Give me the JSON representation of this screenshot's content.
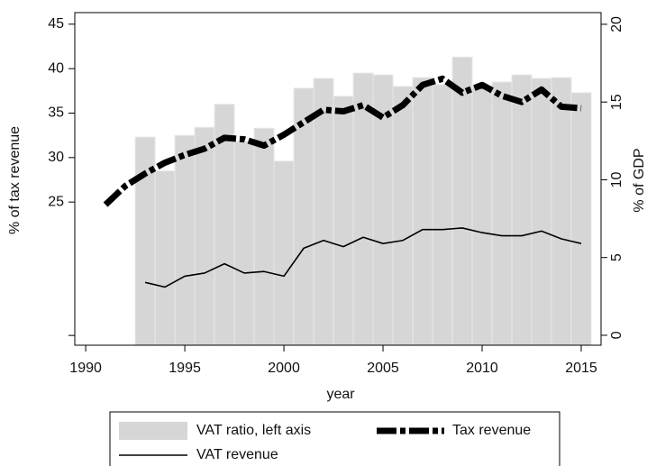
{
  "chart_data": {
    "type": "combo",
    "x_label": "year",
    "y_label": "% of tax revenue",
    "y2_label": "% of GDP",
    "x": [
      1991,
      1992,
      1993,
      1994,
      1995,
      1996,
      1997,
      1998,
      1999,
      2000,
      2001,
      2002,
      2003,
      2004,
      2005,
      2006,
      2007,
      2008,
      2009,
      2010,
      2011,
      2012,
      2013,
      2014,
      2015
    ],
    "xlim": [
      1989.45,
      2016
    ],
    "xticks": [
      1990,
      1995,
      2000,
      2005,
      2010,
      2015
    ],
    "ylim": [
      8.9,
      46.3
    ],
    "yticks": [
      {
        "value": 10,
        "label": null
      },
      25,
      30,
      35,
      40,
      45
    ],
    "y2lim": [
      -0.64,
      20.75
    ],
    "y2ticks": [
      0,
      5,
      10,
      15,
      20
    ],
    "series": [
      {
        "name": "VAT ratio, left axis",
        "type": "bar",
        "axis": "y",
        "color": "#d6d6d6",
        "values": [
          null,
          null,
          32.3,
          28.5,
          32.5,
          33.4,
          36.0,
          31.8,
          33.3,
          29.6,
          37.8,
          38.9,
          36.9,
          39.5,
          39.3,
          38.0,
          39.0,
          38.2,
          41.3,
          38.0,
          38.5,
          39.3,
          38.9,
          39.0,
          37.3
        ]
      },
      {
        "name": "Tax revenue",
        "type": "line",
        "axis": "y2",
        "color": "#000000",
        "style": "dash-dot",
        "values": [
          8.4,
          9.6,
          10.4,
          11.1,
          11.6,
          12.0,
          12.7,
          12.6,
          12.2,
          12.9,
          13.7,
          14.5,
          14.4,
          14.8,
          14.0,
          14.8,
          16.1,
          16.5,
          15.6,
          16.1,
          15.4,
          15.0,
          15.8,
          14.7,
          14.6
        ]
      },
      {
        "name": "VAT revenue",
        "type": "line",
        "axis": "y2",
        "color": "#000000",
        "style": "solid",
        "values": [
          null,
          null,
          3.4,
          3.1,
          3.8,
          4.0,
          4.6,
          4.0,
          4.1,
          3.8,
          5.6,
          6.1,
          5.7,
          6.3,
          5.9,
          6.1,
          6.8,
          6.8,
          6.9,
          6.6,
          6.4,
          6.4,
          6.7,
          6.2,
          5.9
        ]
      }
    ]
  }
}
